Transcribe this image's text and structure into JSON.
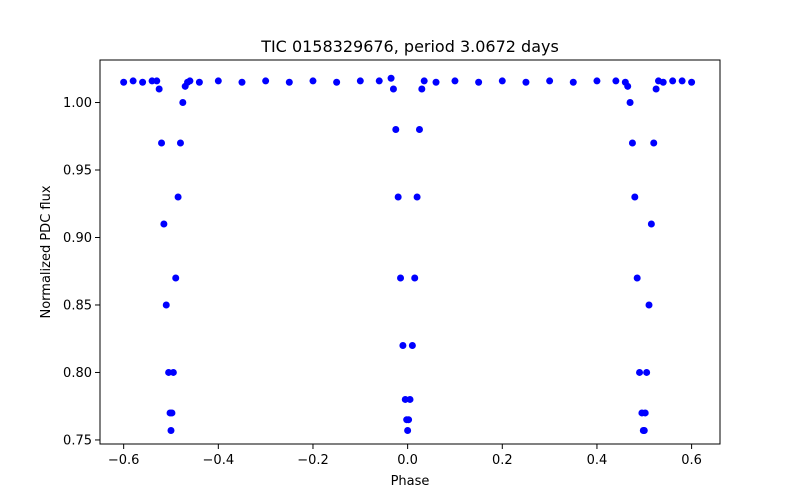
{
  "chart_data": {
    "type": "scatter",
    "title": "TIC 0158329676, period 3.0672 days",
    "xlabel": "Phase",
    "ylabel": "Normalized PDC flux",
    "xlim": [
      -0.65,
      0.66
    ],
    "ylim": [
      0.747,
      1.0315
    ],
    "xticks": [
      -0.6,
      -0.4,
      -0.2,
      0.0,
      0.2,
      0.4,
      0.6
    ],
    "xtick_labels": [
      "−0.6",
      "−0.4",
      "−0.2",
      "0.0",
      "0.2",
      "0.4",
      "0.6"
    ],
    "yticks": [
      0.75,
      0.8,
      0.85,
      0.9,
      0.95,
      1.0
    ],
    "ytick_labels": [
      "0.75",
      "0.80",
      "0.85",
      "0.90",
      "0.95",
      "1.00"
    ],
    "grid": false,
    "legend": "none",
    "marker_color": "#0000ff",
    "series": [
      {
        "x": [
          -0.6,
          -0.58,
          -0.56,
          -0.54,
          -0.53,
          -0.525,
          -0.52,
          -0.515,
          -0.51,
          -0.505,
          -0.502,
          -0.5,
          -0.498,
          -0.495,
          -0.49,
          -0.485,
          -0.48,
          -0.475,
          -0.47,
          -0.465,
          -0.46,
          -0.44,
          -0.4,
          -0.35,
          -0.3,
          -0.25,
          -0.2,
          -0.15,
          -0.1,
          -0.06,
          -0.035,
          -0.03,
          -0.025,
          -0.02,
          -0.015,
          -0.01,
          -0.005,
          -0.002,
          0.0,
          0.002,
          0.005,
          0.01,
          0.015,
          0.02,
          0.025,
          0.03,
          0.035,
          0.06,
          0.1,
          0.15,
          0.2,
          0.25,
          0.3,
          0.35,
          0.4,
          0.44,
          0.46,
          0.465,
          0.47,
          0.475,
          0.48,
          0.485,
          0.49,
          0.495,
          0.498,
          0.5,
          0.502,
          0.505,
          0.51,
          0.515,
          0.52,
          0.525,
          0.53,
          0.54,
          0.56,
          0.58,
          0.6
        ],
        "y": [
          1.015,
          1.016,
          1.015,
          1.016,
          1.016,
          1.01,
          0.97,
          0.91,
          0.85,
          0.8,
          0.77,
          0.757,
          0.77,
          0.8,
          0.87,
          0.93,
          0.97,
          1.0,
          1.012,
          1.015,
          1.016,
          1.015,
          1.016,
          1.015,
          1.016,
          1.015,
          1.016,
          1.015,
          1.016,
          1.016,
          1.018,
          1.01,
          0.98,
          0.93,
          0.87,
          0.82,
          0.78,
          0.765,
          0.757,
          0.765,
          0.78,
          0.82,
          0.87,
          0.93,
          0.98,
          1.01,
          1.016,
          1.015,
          1.016,
          1.015,
          1.016,
          1.015,
          1.016,
          1.015,
          1.016,
          1.016,
          1.015,
          1.012,
          1.0,
          0.97,
          0.93,
          0.87,
          0.8,
          0.77,
          0.757,
          0.757,
          0.77,
          0.8,
          0.85,
          0.91,
          0.97,
          1.01,
          1.016,
          1.015,
          1.016,
          1.016,
          1.015
        ]
      }
    ]
  }
}
